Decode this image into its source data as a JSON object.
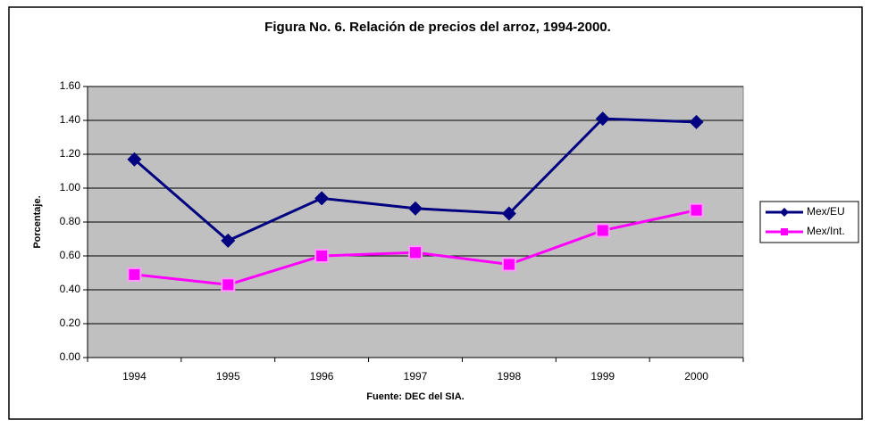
{
  "chart_data": {
    "type": "line",
    "title": "Figura No. 6. Relación de precios del arroz, 1994-2000.",
    "x_label": "Fuente: DEC del SIA.",
    "y_label": "Porcentaje.",
    "categories": [
      "1994",
      "1995",
      "1996",
      "1997",
      "1998",
      "1999",
      "2000"
    ],
    "series": [
      {
        "name": "Mex/EU",
        "color": "#000080",
        "marker": "diamond",
        "values": [
          1.17,
          0.69,
          0.94,
          0.88,
          0.85,
          1.41,
          1.39
        ]
      },
      {
        "name": "Mex/Int.",
        "color": "#ff00ff",
        "marker": "square",
        "values": [
          0.49,
          0.43,
          0.6,
          0.62,
          0.55,
          0.75,
          0.87
        ]
      }
    ],
    "ylim": [
      0,
      1.6
    ],
    "yticks": [
      {
        "value": 0,
        "label": "0.00"
      },
      {
        "value": 0.2,
        "label": "0.20"
      },
      {
        "value": 0.4,
        "label": "0.40"
      },
      {
        "value": 0.6,
        "label": "0.60"
      },
      {
        "value": 0.8,
        "label": "0.80"
      },
      {
        "value": 1.0,
        "label": "1.00"
      },
      {
        "value": 1.2,
        "label": "1.20"
      },
      {
        "value": 1.4,
        "label": "1.40"
      },
      {
        "value": 1.6,
        "label": "1.60"
      }
    ],
    "grid": true,
    "plot_background": "#c0c0c0",
    "legend": "right"
  }
}
